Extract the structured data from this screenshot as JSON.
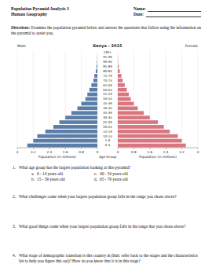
{
  "header": {
    "title": "Population Pyramid Analysis 3",
    "subtitle": "Human Geography",
    "name_label": "Name:",
    "date_label": "Date:"
  },
  "directions": {
    "label": "Directions:",
    "text": "Examine the population pyramid below and answer the questions that follow using the information on the pyramid to assist you."
  },
  "chart_data": {
    "type": "pyramid",
    "orientation": "horizontal",
    "title": "Kenya - 2015",
    "categories": [
      "0-4",
      "5-9",
      "10-14",
      "15-19",
      "20-24",
      "25-29",
      "30-34",
      "35-39",
      "40-44",
      "45-49",
      "50-54",
      "55-59",
      "60-64",
      "65-69",
      "70-74",
      "75-79",
      "80-84",
      "85-89",
      "90-94",
      "95-99",
      "100+"
    ],
    "series": [
      {
        "name": "Male",
        "color": "#5b7ea8",
        "values": [
          3.5,
          3.2,
          3.0,
          2.6,
          2.2,
          1.9,
          1.6,
          1.3,
          1.0,
          0.8,
          0.6,
          0.5,
          0.4,
          0.3,
          0.2,
          0.15,
          0.08,
          0.04,
          0.02,
          0.01,
          0
        ]
      },
      {
        "name": "Female",
        "color": "#d9767f",
        "values": [
          3.4,
          3.2,
          3.0,
          2.6,
          2.3,
          2.0,
          1.6,
          1.3,
          1.0,
          0.8,
          0.65,
          0.55,
          0.45,
          0.35,
          0.25,
          0.18,
          0.1,
          0.05,
          0.02,
          0.01,
          0
        ]
      }
    ],
    "x_label": "Population (in millions)",
    "y_label": "Age Group",
    "xlim": [
      0,
      4
    ],
    "xticks": [
      0,
      0.8,
      1.6,
      2.4,
      3.2,
      4
    ],
    "grid": true
  },
  "questions": [
    {
      "number": "1.",
      "text": "What age group has the largest population looking at this pyramid?",
      "options": [
        {
          "letter": "a.",
          "text": "0 - 14 years old"
        },
        {
          "letter": "b.",
          "text": "15 - 39 years old"
        },
        {
          "letter": "c.",
          "text": "40 - 54 years old"
        },
        {
          "letter": "d.",
          "text": "65 - 79 years old"
        }
      ]
    },
    {
      "number": "2.",
      "text": "What challenges come when your largest population group falls in the range you chose above?"
    },
    {
      "number": "3.",
      "text": "What good things come when your largest population group falls in the range that you chose above?"
    },
    {
      "number": "4.",
      "text": "What stage of demographic transition is this country in (hint: refer back to the stages and the characteristics list to help you figure this out)? How do you know that it is in this stage?"
    }
  ]
}
